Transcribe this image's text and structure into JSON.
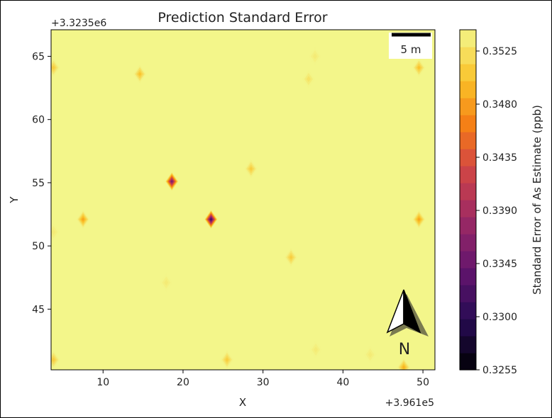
{
  "chart_data": {
    "type": "heatmap",
    "subtype": "filled-contour",
    "title": "Prediction Standard Error",
    "xlabel": "X",
    "ylabel": "Y",
    "x_offset_label": "+3.961e5",
    "y_offset_label": "+3.3235e6",
    "xlim": [
      3.5,
      51.5
    ],
    "ylim": [
      40.2,
      67.1
    ],
    "xticks": [
      10,
      20,
      30,
      40,
      50
    ],
    "yticks": [
      45,
      50,
      55,
      60,
      65
    ],
    "colorbar": {
      "label": "Standard Error of As Estimate (ppb)",
      "range": [
        0.3255,
        0.3543
      ],
      "levels": 20,
      "ticks": [
        "0.3255",
        "0.3300",
        "0.3345",
        "0.3390",
        "0.3435",
        "0.3480",
        "0.3525"
      ],
      "colormap": "inferno"
    },
    "background_value": 0.3543,
    "local_minima": [
      {
        "x": 3.8,
        "y": 64.1,
        "value": 0.35
      },
      {
        "x": 14.6,
        "y": 63.6,
        "value": 0.349
      },
      {
        "x": 35.7,
        "y": 63.2,
        "value": 0.352
      },
      {
        "x": 36.5,
        "y": 65.0,
        "value": 0.353
      },
      {
        "x": 49.5,
        "y": 64.1,
        "value": 0.349
      },
      {
        "x": 18.6,
        "y": 55.1,
        "value": 0.3335
      },
      {
        "x": 28.5,
        "y": 56.1,
        "value": 0.35
      },
      {
        "x": 7.5,
        "y": 52.1,
        "value": 0.347
      },
      {
        "x": 23.5,
        "y": 52.1,
        "value": 0.329
      },
      {
        "x": 49.5,
        "y": 52.1,
        "value": 0.347
      },
      {
        "x": 3.8,
        "y": 51.1,
        "value": 0.353
      },
      {
        "x": 33.5,
        "y": 49.1,
        "value": 0.35
      },
      {
        "x": 17.9,
        "y": 47.1,
        "value": 0.353
      },
      {
        "x": 3.8,
        "y": 41.0,
        "value": 0.35
      },
      {
        "x": 25.5,
        "y": 41.0,
        "value": 0.35
      },
      {
        "x": 36.6,
        "y": 41.8,
        "value": 0.353
      },
      {
        "x": 43.4,
        "y": 41.4,
        "value": 0.353
      },
      {
        "x": 47.6,
        "y": 40.4,
        "value": 0.348
      }
    ]
  },
  "scalebar": {
    "label": "5 m"
  },
  "north_arrow": {
    "label": "N"
  }
}
